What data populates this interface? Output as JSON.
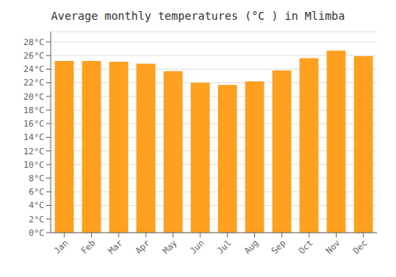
{
  "chart_data": {
    "type": "bar",
    "title": "Average monthly temperatures (°C ) in Mlimba",
    "categories": [
      "Jan",
      "Feb",
      "Mar",
      "Apr",
      "May",
      "Jun",
      "Jul",
      "Aug",
      "Sep",
      "Oct",
      "Nov",
      "Dec"
    ],
    "values": [
      25.2,
      25.2,
      25.1,
      24.8,
      23.7,
      22.0,
      21.7,
      22.2,
      23.8,
      25.6,
      26.7,
      25.9
    ],
    "color": "#FFA020",
    "ylim": [
      0,
      29.5
    ],
    "yticks": [
      {
        "value": 0,
        "label": "0°C"
      },
      {
        "value": 2,
        "label": "2°C"
      },
      {
        "value": 4,
        "label": "4°C"
      },
      {
        "value": 6,
        "label": "6°C"
      },
      {
        "value": 8,
        "label": "8°C"
      },
      {
        "value": 10,
        "label": "10°C"
      },
      {
        "value": 12,
        "label": "12°C"
      },
      {
        "value": 14,
        "label": "14°C"
      },
      {
        "value": 16,
        "label": "16°C"
      },
      {
        "value": 18,
        "label": "18°C"
      },
      {
        "value": 20,
        "label": "20°C"
      },
      {
        "value": 22,
        "label": "22°C"
      },
      {
        "value": 24,
        "label": "24°C"
      },
      {
        "value": 26,
        "label": "26°C"
      },
      {
        "value": 28,
        "label": "28°C"
      }
    ],
    "grid": true
  }
}
